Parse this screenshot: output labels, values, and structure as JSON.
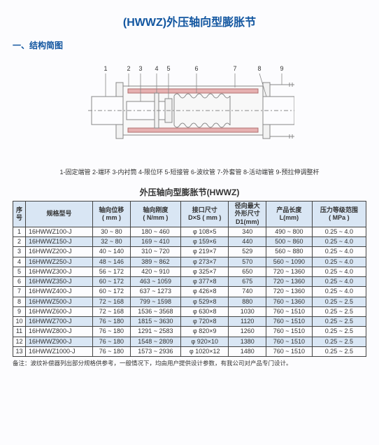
{
  "title": "(HWWZ)外压轴向型膨胀节",
  "section1": "一、结构简图",
  "diagram": {
    "labels": [
      "1",
      "2",
      "3",
      "4",
      "5",
      "6",
      "7",
      "8",
      "9"
    ],
    "stroke": "#888888",
    "fill_light": "#f2f2f2",
    "fill_accent": "#e6b0b0",
    "bg": "#fcfcfe"
  },
  "legend": "1-固定端管  2-端环  3-内衬筒  4-限位环  5-短接管  6-波纹管  7-外套管  8-活动端管  9-预拉伸调整杆",
  "table_title": "外压轴向型膨胀节(HWWZ)",
  "columns": [
    {
      "l1": "序",
      "l2": "号"
    },
    {
      "l1": "规格型号",
      "l2": ""
    },
    {
      "l1": "轴向位移",
      "l2": "( mm )"
    },
    {
      "l1": "轴向刚度",
      "l2": "( N/mm )"
    },
    {
      "l1": "接口尺寸",
      "l2": "D×S ( mm )"
    },
    {
      "l1": "径向最大",
      "l2": "外形尺寸",
      "l3": "D1(mm)"
    },
    {
      "l1": "产品长度",
      "l2": "L(mm)"
    },
    {
      "l1": "压力等级范围",
      "l2": "( MPa )"
    }
  ],
  "rows": [
    [
      "1",
      "16HWWZ100-J",
      "30 ~ 80",
      "180 ~ 460",
      "φ 108×5",
      "340",
      "490 ~ 800",
      "0.25 ~ 4.0"
    ],
    [
      "2",
      "16HWWZ150-J",
      "32 ~ 80",
      "169 ~ 410",
      "φ 159×6",
      "440",
      "500 ~ 860",
      "0.25 ~ 4.0"
    ],
    [
      "3",
      "16HWWZ200-J",
      "40 ~ 140",
      "310 ~ 720",
      "φ 219×7",
      "529",
      "560 ~ 880",
      "0.25 ~ 4.0"
    ],
    [
      "4",
      "16HWWZ250-J",
      "48 ~ 146",
      "389 ~ 862",
      "φ 273×7",
      "570",
      "560 ~ 1090",
      "0.25 ~ 4.0"
    ],
    [
      "5",
      "16HWWZ300-J",
      "56 ~ 172",
      "420 ~ 910",
      "φ 325×7",
      "650",
      "720 ~ 1360",
      "0.25 ~ 4.0"
    ],
    [
      "6",
      "16HWWZ350-J",
      "60 ~ 172",
      "463 ~ 1059",
      "φ 377×8",
      "675",
      "720 ~ 1360",
      "0.25 ~ 4.0"
    ],
    [
      "7",
      "16HWWZ400-J",
      "60 ~ 172",
      "637 ~ 1273",
      "φ 426×8",
      "740",
      "720 ~ 1360",
      "0.25 ~ 4.0"
    ],
    [
      "8",
      "16HWWZ500-J",
      "72 ~ 168",
      "799 ~ 1598",
      "φ 529×8",
      "880",
      "760 ~ 1360",
      "0.25 ~ 2.5"
    ],
    [
      "9",
      "16HWWZ600-J",
      "72 ~ 168",
      "1536 ~ 3568",
      "φ 630×8",
      "1030",
      "760 ~ 1510",
      "0.25 ~ 2.5"
    ],
    [
      "10",
      "16HWWZ700-J",
      "76 ~ 180",
      "1815 ~ 3630",
      "φ 720×8",
      "1120",
      "760 ~ 1510",
      "0.25 ~ 2.5"
    ],
    [
      "11",
      "16HWWZ800-J",
      "76 ~ 180",
      "1291 ~ 2583",
      "φ 820×9",
      "1260",
      "760 ~ 1510",
      "0.25 ~ 2.5"
    ],
    [
      "12",
      "16HWWZ900-J",
      "76 ~ 180",
      "1548 ~ 2809",
      "φ 920×10",
      "1380",
      "760 ~ 1510",
      "0.25 ~ 2.5"
    ],
    [
      "13",
      "16HWWZ1000-J",
      "76 ~ 180",
      "1573 ~ 2936",
      "φ 1020×12",
      "1480",
      "760 ~ 1510",
      "0.25 ~ 2.5"
    ]
  ],
  "footnote": "备注：波纹补偿器列出部分规格供参考，一般情况下，均由用户提供设计参数，有我公司对产品专门设计。"
}
